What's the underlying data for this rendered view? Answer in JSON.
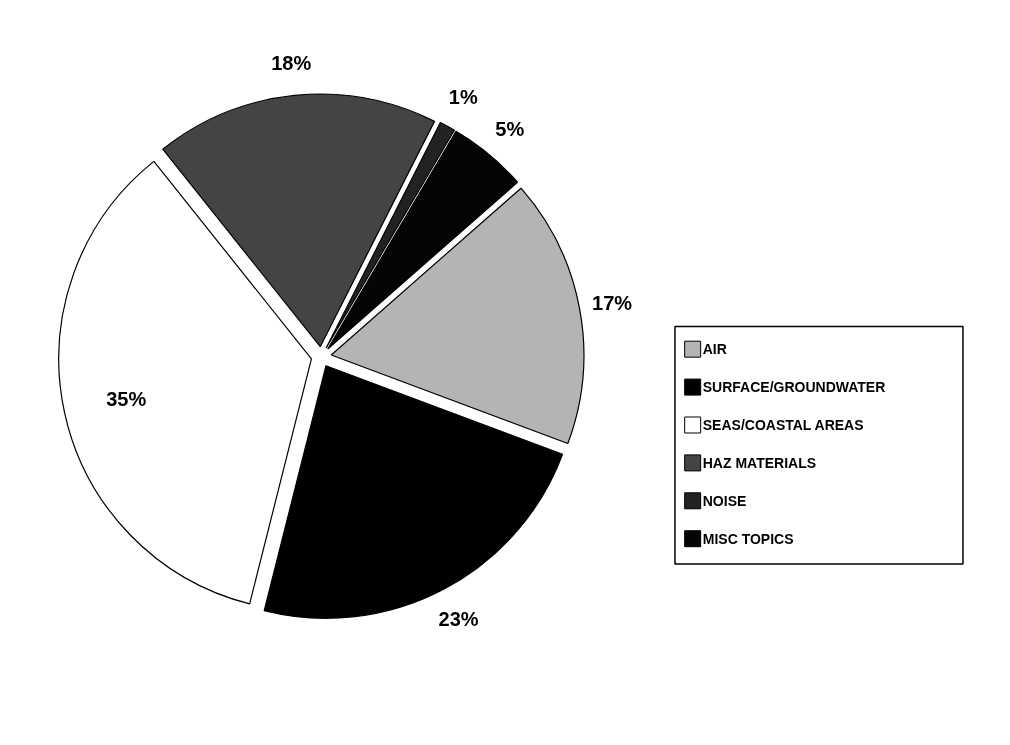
{
  "chart_data": {
    "type": "pie",
    "categories": [
      "AIR",
      "SURFACE/GROUNDWATER",
      "SEAS/COASTAL AREAS",
      "HAZ MATERIALS",
      "NOISE",
      "MISC TOPICS"
    ],
    "values": [
      17,
      23,
      35,
      18,
      1,
      5
    ],
    "colors": [
      "#b4b4b4",
      "#000000",
      "#ffffff",
      "#444444",
      "#222222",
      "#050505"
    ],
    "value_labels": [
      "17%",
      "23%",
      "35%",
      "18%",
      "1%",
      "5%"
    ],
    "legend": "right"
  }
}
